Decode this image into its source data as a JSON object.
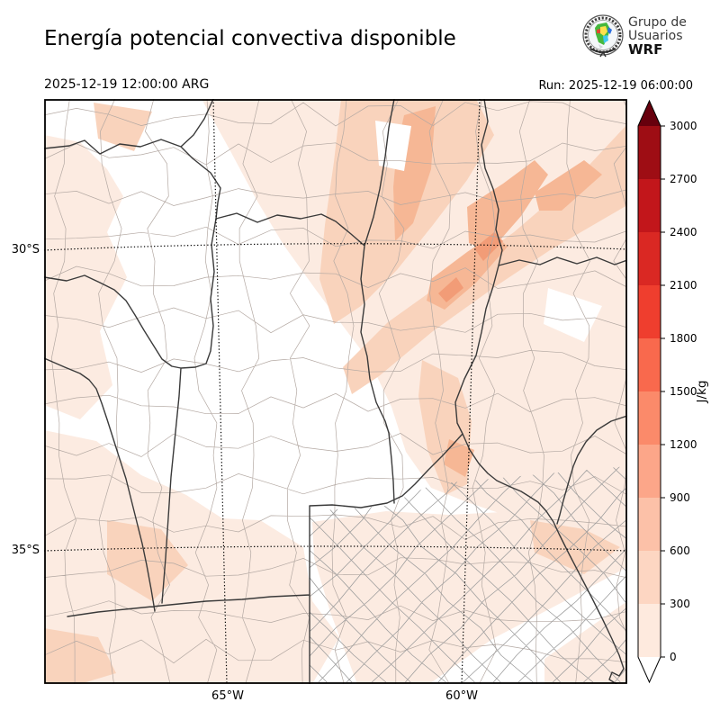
{
  "header": {
    "title": "Energía potencial convectiva disponible",
    "valid_time": "2025-12-19 12:00:00 ARG",
    "run_label": "Run: 2025-12-19 06:00:00",
    "logo": {
      "line1": "Grupo de",
      "line2": "Usuarios",
      "line3": "WRF"
    }
  },
  "map": {
    "x_tick_labels": [
      "65°W",
      "60°W"
    ],
    "y_tick_labels": [
      "30°S",
      "35°S"
    ],
    "graticule_style": "dotted",
    "province_line_color": "#3a3a3a",
    "department_line_color": "#b4a9a3",
    "shading_levels": [
      {
        "range_jkg": "0-300",
        "color": "#fcebe1"
      },
      {
        "range_jkg": "300-600",
        "color": "#f9d3bc"
      },
      {
        "range_jkg": "600-900",
        "color": "#f6b795"
      },
      {
        "range_jkg": "900-1200",
        "color": "#f29c77"
      },
      {
        "range_jkg": "1200-1500",
        "color": "#ee8a62"
      }
    ]
  },
  "colorbar": {
    "units": "J/kg",
    "tick_labels": [
      "0",
      "300",
      "600",
      "900",
      "1200",
      "1500",
      "1800",
      "2100",
      "2400",
      "2700",
      "3000"
    ],
    "segment_colors": [
      "#feeade",
      "#fdd6c2",
      "#fcc1a8",
      "#fca689",
      "#fb8a6a",
      "#f9694d",
      "#ef3e2e",
      "#da2823",
      "#c2161b",
      "#9e0d14"
    ],
    "over_color": "#67000d",
    "under_color": "#ffffff"
  }
}
